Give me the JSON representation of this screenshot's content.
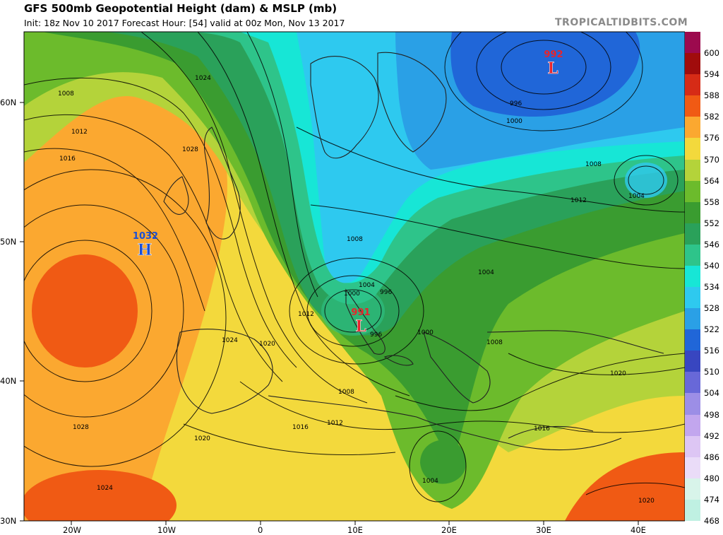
{
  "title": "GFS 500mb Geopotential Height (dam) & MSLP (mb)",
  "subtitle": "Init: 18z Nov 10 2017   Forecast Hour: [54]   valid at 00z Mon, Nov 13 2017",
  "brand": "TROPICALTIDBITS.COM",
  "pressure_centers": [
    {
      "label": "992",
      "letter": "L",
      "color": "#e8242c"
    },
    {
      "label": "1032",
      "letter": "H",
      "color": "#1a4fd6"
    },
    {
      "label": "991",
      "letter": "L",
      "color": "#e8242c"
    }
  ],
  "lat_labels": [
    "60N",
    "50N",
    "40N",
    "30N"
  ],
  "lon_labels": [
    "20W",
    "10W",
    "0",
    "10E",
    "20E",
    "30E",
    "40E"
  ],
  "isobar_labels": [
    "1024",
    "1008",
    "1012",
    "1016",
    "1028",
    "996",
    "1000",
    "1008",
    "1004",
    "1012",
    "1004",
    "1008",
    "1000",
    "1004",
    "996",
    "996",
    "1012",
    "1008",
    "1000",
    "1008",
    "1020",
    "1024",
    "1020",
    "1020",
    "1028",
    "1016",
    "1012",
    "1008",
    "1004",
    "1016",
    "1020",
    "1024",
    "1020"
  ],
  "colorbar": {
    "labels": [
      "600",
      "594",
      "588",
      "582",
      "576",
      "570",
      "564",
      "558",
      "552",
      "546",
      "540",
      "534",
      "528",
      "522",
      "516",
      "510",
      "504",
      "498",
      "492",
      "486",
      "480",
      "474",
      "468"
    ],
    "colors": [
      "#9c0a4e",
      "#a00c0c",
      "#d62b16",
      "#f05a14",
      "#fba830",
      "#f3d93c",
      "#b4d33a",
      "#6cbb2c",
      "#3a9c30",
      "#2aa15a",
      "#2ec48a",
      "#17e6d6",
      "#2ec9ef",
      "#2aa0e6",
      "#2066d8",
      "#3846c0",
      "#6868d8",
      "#9c8ee6",
      "#c2a6ee",
      "#ddc6f4",
      "#eadcf8",
      "#d8f4ea",
      "#bff0e2"
    ]
  }
}
